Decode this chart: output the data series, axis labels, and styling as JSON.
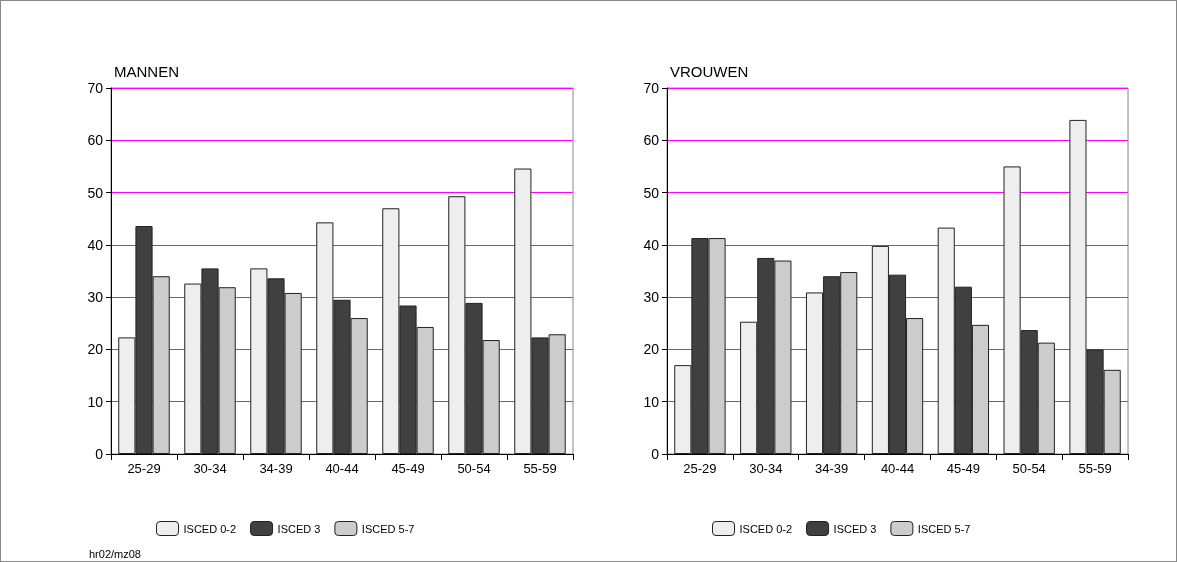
{
  "chart_data": [
    {
      "type": "bar",
      "title": "MANNEN",
      "categories": [
        "25-29",
        "30-34",
        "34-39",
        "40-44",
        "45-49",
        "50-54",
        "55-59"
      ],
      "series": [
        {
          "name": "ISCED 0-2",
          "color": "#eeeeee",
          "values": [
            22.3,
            32.6,
            35.5,
            44.3,
            47.0,
            49.3,
            54.6
          ]
        },
        {
          "name": "ISCED 3",
          "color": "#404040",
          "values": [
            43.6,
            35.5,
            33.6,
            29.5,
            28.4,
            28.9,
            22.3
          ]
        },
        {
          "name": "ISCED 5-7",
          "color": "#cccccc",
          "values": [
            34.0,
            31.9,
            30.8,
            26.0,
            24.3,
            21.8,
            22.9
          ]
        }
      ],
      "ylim": [
        0,
        70
      ],
      "yticks": [
        0,
        10,
        20,
        30,
        40,
        50,
        60,
        70
      ],
      "grid": "y",
      "legend": "bottom",
      "annotations": [
        "hr02/mz08"
      ]
    },
    {
      "type": "bar",
      "title": "VROUWEN",
      "categories": [
        "25-29",
        "30-34",
        "34-39",
        "40-44",
        "45-49",
        "50-54",
        "55-59"
      ],
      "series": [
        {
          "name": "ISCED 0-2",
          "color": "#eeeeee",
          "values": [
            17.0,
            25.3,
            30.9,
            39.8,
            43.3,
            55.0,
            63.9
          ]
        },
        {
          "name": "ISCED 3",
          "color": "#404040",
          "values": [
            41.3,
            37.5,
            34.0,
            34.3,
            32.0,
            23.7,
            20.0
          ]
        },
        {
          "name": "ISCED 5-7",
          "color": "#cccccc",
          "values": [
            41.3,
            37.0,
            34.8,
            26.0,
            24.7,
            21.3,
            16.1
          ]
        }
      ],
      "ylim": [
        0,
        70
      ],
      "yticks": [
        0,
        10,
        20,
        30,
        40,
        50,
        60,
        70
      ],
      "grid": "y",
      "legend": "bottom"
    }
  ]
}
